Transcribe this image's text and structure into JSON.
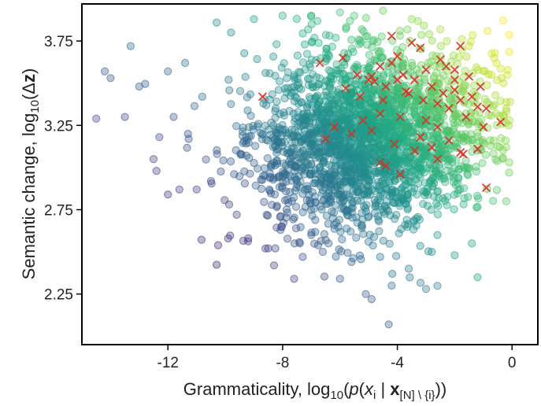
{
  "chart_data": {
    "type": "scatter",
    "title": "",
    "xlabel": {
      "prefix": "Grammaticality, log",
      "log_base": "10",
      "p": "p",
      "x": "x",
      "x_sub": "i",
      "bar": " | ",
      "bold_x": "x",
      "bold_sub": "[N] \\ {i}",
      "close": "))"
    },
    "ylabel": {
      "prefix": "Semantic change, log",
      "log_base": "10",
      "open": "(",
      "delta": "Δ",
      "bold_z": "z",
      "close": ")"
    },
    "xlim": [
      -15,
      0.9
    ],
    "ylim": [
      1.95,
      3.97
    ],
    "x_ticks": [
      -12,
      -8,
      -4,
      0
    ],
    "x_tick_labels": [
      "-12",
      "-8",
      "-4",
      "0"
    ],
    "y_ticks": [
      2.25,
      2.75,
      3.25,
      3.75
    ],
    "y_tick_labels": [
      "2.25",
      "2.75",
      "3.25",
      "3.75"
    ],
    "grid": false,
    "legend": "none",
    "colormap": "viridis",
    "point_alpha": 0.35,
    "density_center": {
      "x": -5.0,
      "y": 3.18
    },
    "density_std": {
      "x": 2.0,
      "y": 0.26
    },
    "color_value_relation": "color rises from purple to yellow with increasing x and y",
    "highlight_marker": "x",
    "highlight_color": "#d7301f",
    "series": [
      {
        "marker": "circle",
        "color": "viridis gradient",
        "points": [
          [
            -14.5,
            3.29
          ],
          [
            -14.2,
            3.57
          ],
          [
            -14.0,
            3.53
          ],
          [
            -13.5,
            3.3
          ],
          [
            -13.3,
            3.72
          ],
          [
            -13.0,
            3.48
          ],
          [
            -12.5,
            3.05
          ],
          [
            -12.4,
            2.98
          ],
          [
            -12.0,
            2.84
          ],
          [
            -11.6,
            2.87
          ],
          [
            -11.0,
            2.87
          ],
          [
            -10.5,
            2.92
          ],
          [
            -12.0,
            3.57
          ],
          [
            -11.4,
            3.62
          ],
          [
            -10.3,
            3.86
          ],
          [
            -9.8,
            3.8
          ],
          [
            -9.0,
            3.88
          ],
          [
            -8.0,
            3.9
          ],
          [
            -7.0,
            3.9
          ],
          [
            -6.0,
            3.92
          ],
          [
            -5.5,
            3.9
          ],
          [
            -4.5,
            3.93
          ],
          [
            -3.5,
            3.88
          ],
          [
            -2.5,
            3.82
          ],
          [
            -1.5,
            3.72
          ],
          [
            -0.6,
            3.68
          ],
          [
            -0.3,
            3.5
          ],
          [
            -0.2,
            3.35
          ],
          [
            -0.2,
            3.12
          ],
          [
            -0.1,
            2.97
          ],
          [
            -0.2,
            2.8
          ],
          [
            -1.4,
            2.55
          ],
          [
            -1.2,
            2.35
          ],
          [
            -2.0,
            2.48
          ],
          [
            -2.8,
            2.5
          ],
          [
            -3.6,
            2.4
          ],
          [
            -4.2,
            2.3
          ],
          [
            -5.1,
            2.25
          ],
          [
            -6.0,
            2.34
          ],
          [
            -6.4,
            2.55
          ],
          [
            -6.2,
            2.66
          ],
          [
            -7.3,
            2.47
          ],
          [
            -7.6,
            2.34
          ],
          [
            -8.6,
            2.52
          ],
          [
            -9.2,
            2.58
          ],
          [
            -9.9,
            2.58
          ],
          [
            -7.0,
            2.6
          ],
          [
            -4.9,
            2.22
          ],
          [
            -5.6,
            2.44
          ],
          [
            -4.6,
            2.47
          ],
          [
            -4.3,
            2.07
          ],
          [
            -2.6,
            2.6
          ],
          [
            -3.0,
            2.28
          ],
          [
            -8.3,
            2.42
          ],
          [
            -6.6,
            2.5
          ],
          [
            -9.6,
            2.72
          ],
          [
            -10.8,
            3.42
          ],
          [
            -11.3,
            3.2
          ],
          [
            -12.3,
            3.18
          ],
          [
            -11.8,
            3.3
          ]
        ]
      },
      {
        "name": "",
        "marker": "x",
        "color": "#d7301f",
        "points": [
          [
            -5.9,
            3.65
          ],
          [
            -5.4,
            3.55
          ],
          [
            -5.0,
            3.52
          ],
          [
            -4.9,
            3.54
          ],
          [
            -4.8,
            3.51
          ],
          [
            -4.6,
            3.6
          ],
          [
            -4.4,
            3.48
          ],
          [
            -4.2,
            3.62
          ],
          [
            -4.0,
            3.66
          ],
          [
            -3.8,
            3.55
          ],
          [
            -3.6,
            3.44
          ],
          [
            -3.4,
            3.52
          ],
          [
            -3.2,
            3.71
          ],
          [
            -3.0,
            3.58
          ],
          [
            -2.8,
            3.48
          ],
          [
            -2.6,
            3.38
          ],
          [
            -2.4,
            3.44
          ],
          [
            -2.2,
            3.35
          ],
          [
            -2.0,
            3.46
          ],
          [
            -1.8,
            3.4
          ],
          [
            -1.6,
            3.3
          ],
          [
            -1.4,
            3.42
          ],
          [
            -1.2,
            3.36
          ],
          [
            -1.0,
            3.24
          ],
          [
            -0.9,
            3.35
          ],
          [
            -0.4,
            3.27
          ],
          [
            -2.5,
            3.64
          ],
          [
            -2.0,
            3.58
          ],
          [
            -1.8,
            3.72
          ],
          [
            -3.5,
            3.74
          ],
          [
            -4.2,
            3.78
          ],
          [
            -3.9,
            3.3
          ],
          [
            -4.6,
            3.32
          ],
          [
            -5.2,
            3.28
          ],
          [
            -5.6,
            3.2
          ],
          [
            -6.2,
            3.24
          ],
          [
            -6.5,
            3.17
          ],
          [
            -4.9,
            3.22
          ],
          [
            -4.1,
            3.14
          ],
          [
            -3.4,
            3.1
          ],
          [
            -2.8,
            3.12
          ],
          [
            -2.2,
            3.16
          ],
          [
            -1.7,
            3.08
          ],
          [
            -3.0,
            3.28
          ],
          [
            -2.6,
            3.24
          ],
          [
            -3.7,
            3.45
          ],
          [
            -4.5,
            3.4
          ],
          [
            -5.3,
            3.42
          ],
          [
            -5.8,
            3.47
          ],
          [
            -6.7,
            3.62
          ],
          [
            -8.7,
            3.42
          ],
          [
            -4.6,
            3.03
          ],
          [
            -4.4,
            3.01
          ],
          [
            -3.9,
            2.96
          ],
          [
            -1.8,
            3.09
          ],
          [
            -1.2,
            3.11
          ],
          [
            -0.9,
            2.88
          ],
          [
            -2.0,
            3.52
          ],
          [
            -2.3,
            3.6
          ],
          [
            -3.1,
            3.4
          ],
          [
            -4.0,
            3.52
          ],
          [
            -3.2,
            3.18
          ],
          [
            -2.6,
            3.05
          ],
          [
            -1.5,
            3.54
          ],
          [
            -1.1,
            3.48
          ]
        ]
      }
    ]
  }
}
